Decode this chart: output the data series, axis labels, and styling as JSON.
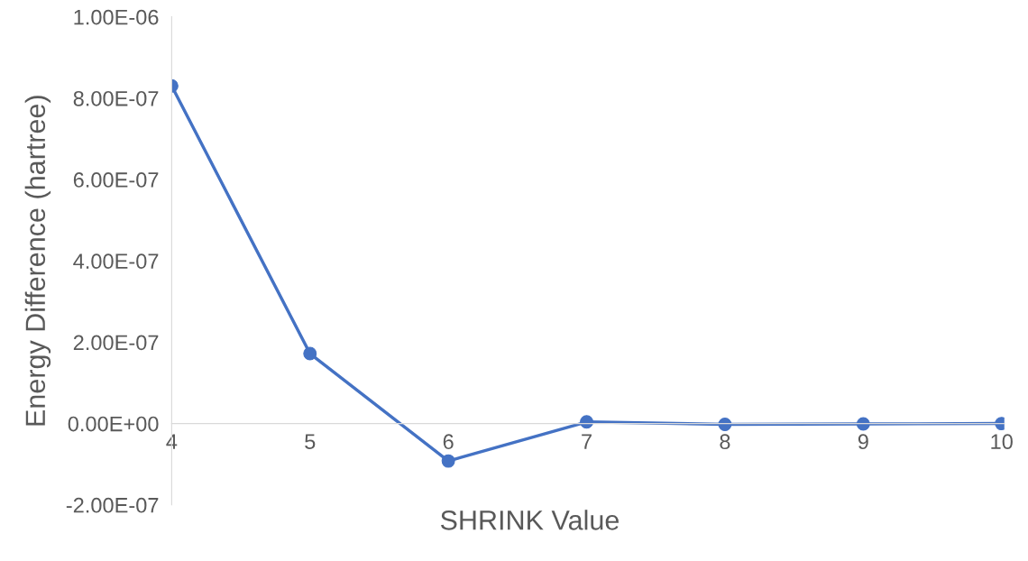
{
  "chart_data": {
    "type": "line",
    "xlabel": "SHRINK Value",
    "ylabel": "Energy Difference (hartree)",
    "categories": [
      "4",
      "5",
      "6",
      "7",
      "8",
      "9",
      "10"
    ],
    "series": [
      {
        "color": "#4472c4",
        "values": [
          8.3e-07,
          1.72e-07,
          -9.2e-08,
          4e-09,
          -2e-09,
          -1e-09,
          0
        ]
      }
    ],
    "ylim": [
      -2e-07,
      1e-06
    ],
    "yticks": [
      {
        "value": -2e-07,
        "label": "-2.00E-07"
      },
      {
        "value": 0,
        "label": "0.00E+00"
      },
      {
        "value": 2e-07,
        "label": "2.00E-07"
      },
      {
        "value": 4e-07,
        "label": "4.00E-07"
      },
      {
        "value": 6e-07,
        "label": "6.00E-07"
      },
      {
        "value": 8e-07,
        "label": "8.00E-07"
      },
      {
        "value": 1e-06,
        "label": "1.00E-06"
      }
    ],
    "marker": "circle",
    "line_style": "solid",
    "grid": false,
    "legend": false
  }
}
